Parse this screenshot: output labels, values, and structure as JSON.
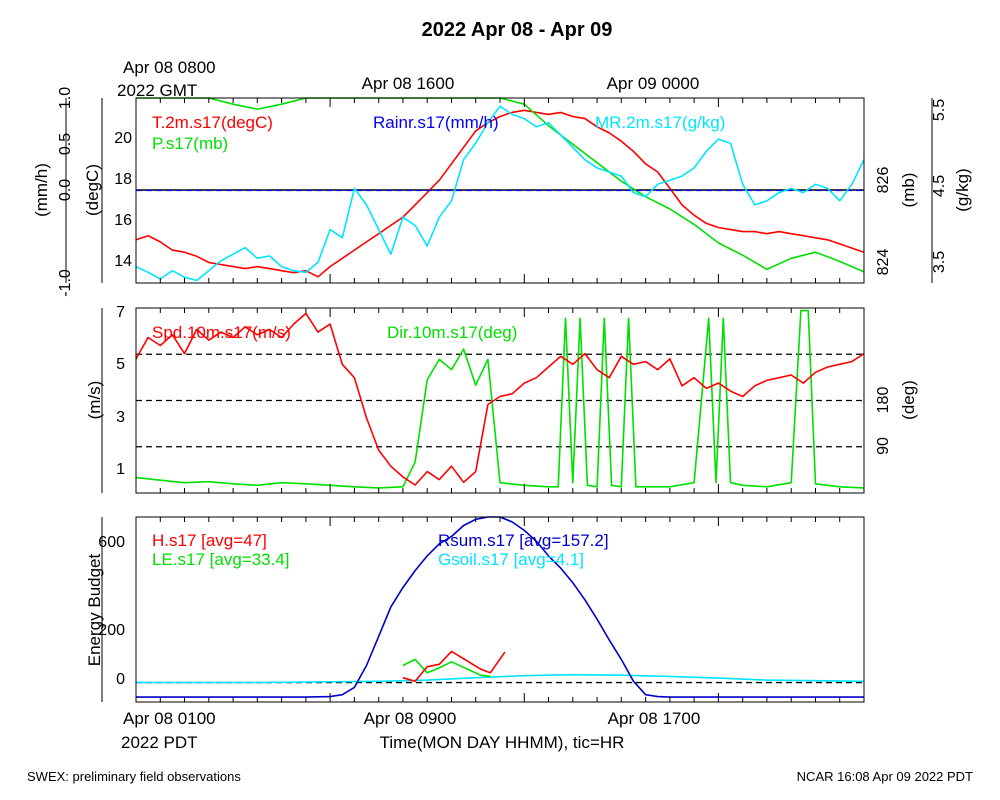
{
  "title": "2022 Apr 08 - Apr 09",
  "top_time_labels": {
    "start_line1": "Apr 08 0800",
    "start_line2": "2022 GMT",
    "mid": "Apr 08 1600",
    "end": "Apr 09 0000"
  },
  "bottom_time_labels": {
    "start_line1": "Apr 08 0100",
    "start_line2": "2022 PDT",
    "mid": "Apr 08 0900",
    "end": "Apr 08 1700",
    "xlabel": "Time(MON DAY HHMM), tic=HR"
  },
  "footer": {
    "left": "SWEX: preliminary field observations",
    "right": "NCAR 16:08 Apr 09 2022 PDT"
  },
  "colors": {
    "red": "#ff0000",
    "green": "#00e000",
    "blue": "#0000ff",
    "cyan": "#00e5ff",
    "navy": "#0000cc",
    "axis": "#000000"
  },
  "chart_data": [
    {
      "type": "line",
      "panel": "top",
      "x_unit": "hours since Apr 08 0100 PDT",
      "x_range": [
        0,
        30
      ],
      "axes": {
        "rain": {
          "label": "(mm/h)",
          "range": [
            -1.0,
            1.0
          ],
          "ticks": [
            "-1.0",
            "0.0",
            "0.5",
            "1.0"
          ]
        },
        "temp": {
          "label": "(degC)",
          "range": [
            13,
            22
          ],
          "ticks": [
            "14",
            "16",
            "18",
            "20"
          ]
        },
        "pres": {
          "label": "(mb)",
          "range": [
            823.8,
            826.8
          ],
          "ticks": [
            "824",
            "826"
          ]
        },
        "mr": {
          "label": "(g/kg)",
          "range": [
            3.35,
            5.6
          ],
          "ticks": [
            "3.5",
            "4.5",
            "5.5"
          ]
        }
      },
      "reference_line": {
        "axis": "rain",
        "value": 0.0
      },
      "series": [
        {
          "name": "T.2m.s17(degC)",
          "axis": "temp",
          "color": "#ff0000",
          "x": [
            0,
            0.5,
            1,
            1.5,
            2,
            2.5,
            3,
            3.5,
            4,
            4.5,
            5,
            5.5,
            6,
            6.5,
            7,
            7.5,
            8,
            8.5,
            9,
            9.5,
            10,
            10.5,
            11,
            11.5,
            12,
            12.5,
            13,
            13.5,
            14,
            14.5,
            15,
            15.5,
            16,
            16.5,
            17,
            17.5,
            18,
            18.5,
            19,
            19.5,
            20,
            20.5,
            21,
            21.5,
            22,
            22.5,
            23,
            23.5,
            24,
            24.5,
            25,
            25.5,
            26,
            26.5,
            27,
            27.5,
            28,
            28.5,
            29,
            29.5,
            30
          ],
          "y": [
            15.1,
            15.3,
            15.0,
            14.6,
            14.5,
            14.3,
            14.0,
            13.9,
            13.8,
            13.7,
            13.8,
            13.7,
            13.6,
            13.5,
            13.6,
            13.3,
            13.8,
            14.2,
            14.6,
            15.0,
            15.4,
            15.8,
            16.2,
            16.8,
            17.4,
            18.0,
            18.8,
            19.6,
            20.4,
            20.8,
            21.1,
            21.3,
            21.4,
            21.3,
            21.2,
            21.3,
            21.1,
            21.0,
            20.6,
            20.3,
            19.9,
            19.4,
            18.8,
            18.4,
            17.6,
            16.8,
            16.3,
            15.9,
            15.7,
            15.6,
            15.5,
            15.5,
            15.4,
            15.5,
            15.4,
            15.3,
            15.2,
            15.1,
            14.9,
            14.7,
            14.5
          ]
        },
        {
          "name": "P.s17(mb)",
          "axis": "pres",
          "color": "#00e000",
          "x": [
            0,
            1,
            2,
            3,
            4,
            5,
            6,
            7,
            8,
            9,
            10,
            11,
            12,
            13,
            14,
            15,
            16,
            17,
            18,
            19,
            20,
            21,
            22,
            23,
            24,
            25,
            26,
            27,
            28,
            29,
            30
          ],
          "y": [
            827.55,
            827.4,
            827.1,
            826.9,
            826.7,
            826.62,
            826.7,
            826.85,
            826.98,
            827.1,
            827.18,
            827.28,
            827.35,
            827.3,
            827.15,
            826.95,
            826.7,
            826.35,
            826.05,
            825.75,
            825.45,
            825.2,
            825.0,
            824.75,
            824.45,
            824.25,
            824.02,
            824.2,
            824.3,
            824.15,
            823.98
          ]
        },
        {
          "name": "Rainr.s17(mm/h)",
          "axis": "rain",
          "color": "#0000ff",
          "x": [
            0,
            30
          ],
          "y": [
            0.0,
            0.0
          ]
        },
        {
          "name": "MR.2m.s17(g/kg)",
          "axis": "mr",
          "color": "#00e5ff",
          "x": [
            0,
            0.5,
            1,
            1.5,
            2,
            2.5,
            3,
            3.5,
            4,
            4.5,
            5,
            5.5,
            6,
            6.5,
            7,
            7.5,
            8,
            8.5,
            9,
            9.5,
            10,
            10.5,
            11,
            11.5,
            12,
            12.5,
            13,
            13.5,
            14,
            14.5,
            15,
            15.5,
            16,
            16.5,
            17,
            17.5,
            18,
            18.5,
            19,
            19.5,
            20,
            20.5,
            21,
            21.5,
            22,
            22.5,
            23,
            23.5,
            24,
            24.5,
            25,
            25.5,
            26,
            26.5,
            27,
            27.5,
            28,
            28.5,
            29,
            29.5,
            30
          ],
          "y": [
            3.55,
            3.48,
            3.4,
            3.5,
            3.42,
            3.38,
            3.5,
            3.62,
            3.7,
            3.78,
            3.65,
            3.68,
            3.55,
            3.5,
            3.48,
            3.6,
            4.0,
            3.9,
            4.5,
            4.3,
            4.0,
            3.7,
            4.15,
            4.05,
            3.8,
            4.15,
            4.35,
            4.85,
            5.05,
            5.3,
            5.5,
            5.4,
            5.35,
            5.25,
            5.3,
            5.15,
            5.0,
            4.85,
            4.75,
            4.7,
            4.65,
            4.45,
            4.4,
            4.55,
            4.6,
            4.65,
            4.75,
            4.95,
            5.1,
            5.05,
            4.55,
            4.3,
            4.35,
            4.45,
            4.5,
            4.45,
            4.55,
            4.5,
            4.35,
            4.55,
            4.85
          ]
        }
      ],
      "legend": [
        {
          "text": "T.2m.s17(degC)",
          "color": "#ff0000"
        },
        {
          "text": "P.s17(mb)",
          "color": "#00e000"
        },
        {
          "text": "Rainr.s17(mm/h)",
          "color": "#0000ff"
        },
        {
          "text": "MR.2m.s17(g/kg)",
          "color": "#00e5ff"
        }
      ]
    },
    {
      "type": "line",
      "panel": "middle",
      "x_unit": "hours since Apr 08 0100 PDT",
      "x_range": [
        0,
        30
      ],
      "axes": {
        "spd": {
          "label": "(m/s)",
          "range": [
            0.2,
            7.1
          ],
          "ticks": [
            "1",
            "3",
            "5",
            "7"
          ]
        },
        "dir": {
          "label": "(deg)",
          "range": [
            0,
            360
          ],
          "ticks": [
            "90",
            "180"
          ]
        }
      },
      "dashed_lines": [
        {
          "axis": "dir",
          "value": 90
        },
        {
          "axis": "dir",
          "value": 180
        },
        {
          "axis": "dir",
          "value": 270
        }
      ],
      "series": [
        {
          "name": "Spd.10m.s17(m/s)",
          "axis": "spd",
          "color": "#ff0000",
          "x": [
            0,
            0.5,
            1,
            1.5,
            2,
            2.5,
            3,
            3.5,
            4,
            4.5,
            5,
            5.5,
            6,
            6.5,
            7,
            7.5,
            8,
            8.5,
            9,
            9.5,
            10,
            10.5,
            11,
            11.5,
            12,
            12.5,
            13,
            13.5,
            14,
            14.5,
            15,
            15.5,
            16,
            16.5,
            17,
            17.5,
            18,
            18.5,
            19,
            19.5,
            20,
            20.5,
            21,
            21.5,
            22,
            22.5,
            23,
            23.5,
            24,
            24.5,
            25,
            25.5,
            26,
            26.5,
            27,
            27.5,
            28,
            28.5,
            29,
            29.5,
            30
          ],
          "y": [
            5.2,
            6.0,
            5.7,
            6.1,
            5.4,
            6.3,
            5.9,
            6.2,
            6.0,
            6.4,
            6.1,
            6.3,
            6.0,
            6.5,
            6.9,
            6.2,
            6.5,
            5.0,
            4.5,
            3.0,
            1.8,
            1.2,
            0.8,
            0.5,
            1.0,
            0.7,
            1.2,
            0.6,
            1.0,
            3.5,
            3.8,
            3.9,
            4.3,
            4.5,
            4.9,
            5.3,
            5.0,
            5.4,
            4.8,
            4.5,
            5.3,
            5.0,
            5.1,
            4.8,
            5.2,
            4.2,
            4.5,
            4.1,
            4.3,
            4.0,
            3.8,
            4.2,
            4.4,
            4.5,
            4.6,
            4.3,
            4.7,
            4.9,
            5.0,
            5.1,
            5.4
          ]
        },
        {
          "name": "Dir.10m.s17(deg)",
          "axis": "dir",
          "color": "#00e000",
          "x": [
            0,
            1,
            2,
            3,
            4,
            5,
            6,
            7,
            8,
            9,
            10,
            11,
            11.5,
            12,
            12.5,
            13,
            13.5,
            14,
            14.5,
            15,
            16,
            17,
            17.4,
            17.7,
            18,
            18.3,
            18.6,
            19,
            19.3,
            19.6,
            20,
            20.3,
            20.6,
            21,
            22,
            23,
            23.6,
            23.9,
            24.2,
            24.5,
            25,
            26,
            27,
            27.4,
            27.7,
            28,
            29,
            30
          ],
          "y": [
            30,
            25,
            20,
            22,
            18,
            15,
            20,
            18,
            15,
            12,
            10,
            12,
            60,
            220,
            260,
            240,
            280,
            210,
            260,
            20,
            15,
            12,
            12,
            340,
            20,
            340,
            15,
            12,
            340,
            15,
            12,
            340,
            12,
            12,
            12,
            20,
            340,
            20,
            340,
            20,
            15,
            12,
            20,
            355,
            355,
            18,
            12,
            10
          ]
        }
      ],
      "legend": [
        {
          "text": "Spd.10m.s17(m/s)",
          "color": "#ff0000"
        },
        {
          "text": "Dir.10m.s17(deg)",
          "color": "#00e000"
        }
      ]
    },
    {
      "type": "line",
      "panel": "bottom",
      "x_unit": "hours since Apr 08 0100 PDT",
      "x_range": [
        0,
        30
      ],
      "ylabel": "Energy Budget",
      "ylim": [
        -80,
        680
      ],
      "y_ticks": [
        "0",
        "200",
        "600"
      ],
      "reference_line": 0,
      "series": [
        {
          "name": "Rsum.s17",
          "avg": "157.2",
          "color": "#0000cc",
          "x": [
            0,
            1,
            2,
            3,
            4,
            5,
            6,
            7,
            8,
            8.5,
            9,
            9.5,
            10,
            10.5,
            11,
            11.5,
            12,
            12.5,
            13,
            13.5,
            14,
            14.5,
            15,
            15.5,
            16,
            16.5,
            17,
            17.5,
            18,
            18.5,
            19,
            19.5,
            20,
            20.5,
            21,
            21.5,
            22,
            22.5,
            23,
            23.5,
            24,
            24.5,
            25,
            26,
            27,
            28,
            29,
            30
          ],
          "y": [
            -60,
            -60,
            -60,
            -60,
            -60,
            -60,
            -60,
            -60,
            -58,
            -50,
            -20,
            70,
            190,
            310,
            390,
            460,
            520,
            570,
            600,
            645,
            670,
            680,
            680,
            660,
            625,
            580,
            520,
            470,
            410,
            340,
            260,
            175,
            95,
            5,
            -50,
            -58,
            -60,
            -60,
            -60,
            -60,
            -60,
            -60,
            -60,
            -60,
            -60,
            -60,
            -60,
            -60
          ]
        },
        {
          "name": "H.s17",
          "avg": "47",
          "color": "#ff0000",
          "x": [
            11,
            11.5,
            12,
            12.5,
            13,
            14.2,
            14.6,
            15.2
          ],
          "y": [
            20,
            5,
            65,
            75,
            128,
            55,
            40,
            125
          ]
        },
        {
          "name": "LE.s17",
          "avg": "33.4",
          "color": "#00e000",
          "x": [
            11,
            11.5,
            12,
            12.5,
            13,
            14.2,
            14.6
          ],
          "y": [
            70,
            95,
            40,
            60,
            85,
            30,
            25
          ]
        },
        {
          "name": "Gsoil.s17",
          "avg": "4.1",
          "color": "#00e5ff",
          "x": [
            0,
            5,
            10,
            12,
            14,
            16,
            18,
            20,
            22,
            24,
            26,
            30
          ],
          "y": [
            0,
            0,
            5,
            10,
            20,
            28,
            32,
            30,
            25,
            18,
            10,
            5
          ]
        }
      ],
      "legend": [
        {
          "text": "H.s17 [avg=47]",
          "color": "#ff0000"
        },
        {
          "text": "LE.s17 [avg=33.4]",
          "color": "#00e000"
        },
        {
          "text": "Rsum.s17 [avg=157.2]",
          "color": "#0000cc"
        },
        {
          "text": "Gsoil.s17 [avg=4.1]",
          "color": "#00e5ff"
        }
      ]
    }
  ]
}
